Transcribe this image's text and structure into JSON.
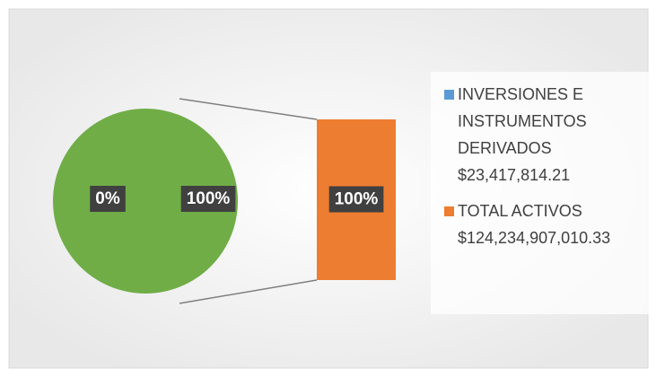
{
  "chart_data": {
    "type": "bar_of_pie",
    "pie": {
      "values": [
        0,
        100
      ],
      "value_labels": [
        "0%",
        "100%"
      ],
      "colors": [
        "#5b9bd5",
        "#70ad47"
      ]
    },
    "bar": {
      "values": [
        100
      ],
      "value_labels": [
        "100%"
      ],
      "color": "#ed7d31"
    },
    "legend": [
      {
        "name": "INVERSIONES E INSTRUMENTOS DERIVADOS $23,417,814.21",
        "color": "#5b9bd5"
      },
      {
        "name": "TOTAL ACTIVOS $124,234,907,010.33",
        "color": "#ed7d31"
      }
    ]
  }
}
